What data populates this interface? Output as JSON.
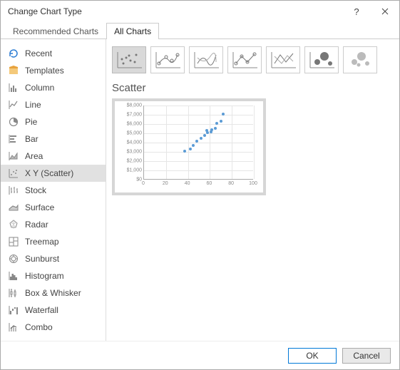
{
  "title": "Change Chart Type",
  "tabs": {
    "recommended": "Recommended Charts",
    "all": "All Charts"
  },
  "active_tab": "all",
  "chart_types": [
    {
      "key": "recent",
      "label": "Recent"
    },
    {
      "key": "templates",
      "label": "Templates"
    },
    {
      "key": "column",
      "label": "Column"
    },
    {
      "key": "line",
      "label": "Line"
    },
    {
      "key": "pie",
      "label": "Pie"
    },
    {
      "key": "bar",
      "label": "Bar"
    },
    {
      "key": "area",
      "label": "Area"
    },
    {
      "key": "scatter",
      "label": "X Y (Scatter)"
    },
    {
      "key": "stock",
      "label": "Stock"
    },
    {
      "key": "surface",
      "label": "Surface"
    },
    {
      "key": "radar",
      "label": "Radar"
    },
    {
      "key": "treemap",
      "label": "Treemap"
    },
    {
      "key": "sunburst",
      "label": "Sunburst"
    },
    {
      "key": "histogram",
      "label": "Histogram"
    },
    {
      "key": "boxwhisker",
      "label": "Box & Whisker"
    },
    {
      "key": "waterfall",
      "label": "Waterfall"
    },
    {
      "key": "combo",
      "label": "Combo"
    }
  ],
  "selected_type": "scatter",
  "subtype_count": 7,
  "selected_subtype": 0,
  "preview": {
    "heading": "Scatter",
    "type": "scatter",
    "xlim": [
      0,
      100
    ],
    "xtick_step": 20,
    "ylim": [
      0,
      8000
    ],
    "ytick_step": 1000,
    "ytick_labels": [
      "$0",
      "$1,000",
      "$2,000",
      "$3,000",
      "$4,000",
      "$5,000",
      "$6,000",
      "$7,000",
      "$8,000"
    ],
    "xtick_labels": [
      "0",
      "20",
      "40",
      "60",
      "80",
      "100"
    ],
    "point_color": "#5b9bd5",
    "grid_color": "#e6e6e6",
    "axis_color": "#aaaaaa",
    "label_color": "#888888",
    "label_fontsize": 7,
    "points": [
      {
        "x": 37,
        "y": 3000
      },
      {
        "x": 42,
        "y": 3200
      },
      {
        "x": 45,
        "y": 3600
      },
      {
        "x": 48,
        "y": 4100
      },
      {
        "x": 52,
        "y": 4400
      },
      {
        "x": 55,
        "y": 4700
      },
      {
        "x": 57,
        "y": 5200
      },
      {
        "x": 58,
        "y": 5000
      },
      {
        "x": 61,
        "y": 5100
      },
      {
        "x": 62,
        "y": 5300
      },
      {
        "x": 65,
        "y": 5500
      },
      {
        "x": 66,
        "y": 6000
      },
      {
        "x": 70,
        "y": 6200
      },
      {
        "x": 72,
        "y": 7000
      }
    ]
  },
  "buttons": {
    "ok": "OK",
    "cancel": "Cancel"
  },
  "colors": {
    "selection_bg": "#e1e1e1",
    "primary_border": "#0078d7",
    "icon_orange": "#e8a33d",
    "icon_blue": "#2b7cd3"
  }
}
